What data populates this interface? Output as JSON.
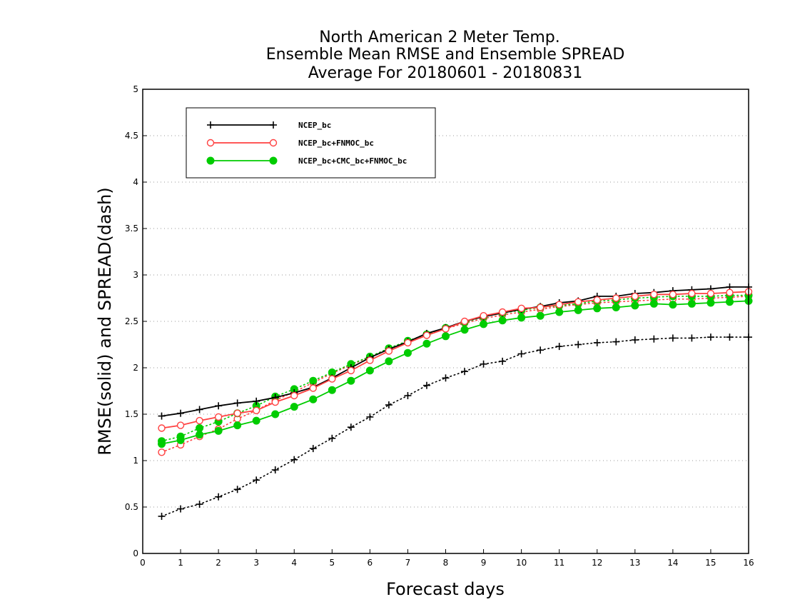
{
  "chart_data": {
    "type": "line",
    "title": [
      "North American 2 Meter Temp.",
      "Ensemble Mean RMSE and Ensemble SPREAD",
      "Average For 20180601 - 20180831"
    ],
    "xlabel": "Forecast days",
    "ylabel": "RMSE(solid) and SPREAD(dash)",
    "xlim": [
      0,
      16
    ],
    "ylim": [
      0,
      5
    ],
    "xticks": [
      0,
      1,
      2,
      3,
      4,
      5,
      6,
      7,
      8,
      9,
      10,
      11,
      12,
      13,
      14,
      15,
      16
    ],
    "yticks": [
      0,
      0.5,
      1,
      1.5,
      2,
      2.5,
      3,
      3.5,
      4,
      4.5,
      5
    ],
    "grid": "horizontal-dotted",
    "legend_position": "top-left",
    "x": [
      0.5,
      1,
      1.5,
      2,
      2.5,
      3,
      3.5,
      4,
      4.5,
      5,
      5.5,
      6,
      6.5,
      7,
      7.5,
      8,
      8.5,
      9,
      9.5,
      10,
      10.5,
      11,
      11.5,
      12,
      12.5,
      13,
      13.5,
      14,
      14.5,
      15,
      15.5,
      16
    ],
    "series": [
      {
        "name": "NCEP_bc",
        "color": "#000000",
        "marker": "plus",
        "rmse": [
          1.48,
          1.51,
          1.55,
          1.59,
          1.62,
          1.64,
          1.68,
          1.73,
          1.79,
          1.89,
          2.0,
          2.11,
          2.2,
          2.28,
          2.37,
          2.43,
          2.5,
          2.55,
          2.59,
          2.63,
          2.66,
          2.7,
          2.72,
          2.77,
          2.77,
          2.8,
          2.81,
          2.83,
          2.84,
          2.85,
          2.87,
          2.87
        ],
        "spread": [
          0.4,
          0.48,
          0.53,
          0.61,
          0.69,
          0.79,
          0.9,
          1.01,
          1.13,
          1.24,
          1.36,
          1.47,
          1.6,
          1.7,
          1.81,
          1.89,
          1.96,
          2.04,
          2.07,
          2.15,
          2.19,
          2.23,
          2.25,
          2.27,
          2.28,
          2.3,
          2.31,
          2.32,
          2.32,
          2.33,
          2.33,
          2.33
        ]
      },
      {
        "name": "NCEP_bc+FNMOC_bc",
        "color": "#ff4040",
        "marker": "open-circle",
        "rmse": [
          1.35,
          1.38,
          1.43,
          1.47,
          1.51,
          1.54,
          1.63,
          1.7,
          1.78,
          1.88,
          1.97,
          2.08,
          2.18,
          2.27,
          2.35,
          2.42,
          2.5,
          2.56,
          2.6,
          2.64,
          2.65,
          2.68,
          2.71,
          2.73,
          2.75,
          2.77,
          2.79,
          2.79,
          2.8,
          2.8,
          2.81,
          2.82
        ],
        "spread": [
          1.09,
          1.17,
          1.26,
          1.34,
          1.45,
          1.54,
          1.65,
          1.74,
          1.84,
          1.94,
          2.03,
          2.12,
          2.2,
          2.28,
          2.36,
          2.42,
          2.48,
          2.53,
          2.57,
          2.6,
          2.63,
          2.66,
          2.68,
          2.7,
          2.71,
          2.72,
          2.73,
          2.74,
          2.74,
          2.75,
          2.76,
          2.77
        ]
      },
      {
        "name": "NCEP_bc+CMC_bc+FNMOC_bc",
        "color": "#00cc00",
        "marker": "filled-circle",
        "rmse": [
          1.18,
          1.22,
          1.28,
          1.32,
          1.38,
          1.43,
          1.5,
          1.58,
          1.66,
          1.76,
          1.86,
          1.97,
          2.07,
          2.16,
          2.26,
          2.34,
          2.41,
          2.47,
          2.51,
          2.54,
          2.56,
          2.6,
          2.62,
          2.64,
          2.65,
          2.67,
          2.69,
          2.68,
          2.69,
          2.7,
          2.71,
          2.72
        ],
        "spread": [
          1.21,
          1.26,
          1.35,
          1.42,
          1.51,
          1.59,
          1.69,
          1.77,
          1.86,
          1.95,
          2.04,
          2.12,
          2.21,
          2.29,
          2.36,
          2.43,
          2.49,
          2.55,
          2.59,
          2.62,
          2.65,
          2.67,
          2.69,
          2.72,
          2.73,
          2.75,
          2.76,
          2.77,
          2.77,
          2.77,
          2.78,
          2.78
        ]
      }
    ]
  }
}
